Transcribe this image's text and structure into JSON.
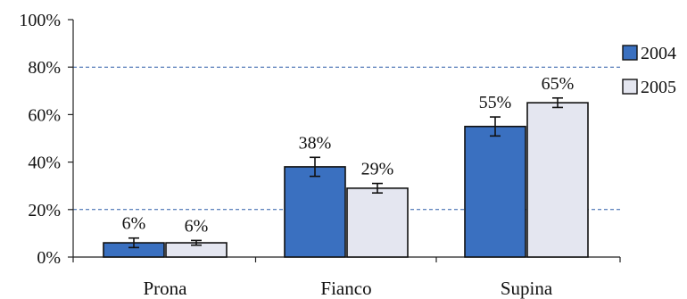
{
  "chart_data": {
    "type": "bar",
    "title": "",
    "xlabel": "",
    "ylabel": "",
    "categories": [
      "Prona",
      "Fianco",
      "Supina"
    ],
    "series": [
      {
        "name": "2004",
        "values": [
          6,
          38,
          55
        ],
        "error": [
          2,
          4,
          4
        ],
        "labels": [
          "6%",
          "38%",
          "55%"
        ],
        "color": "#3a70c0"
      },
      {
        "name": "2005",
        "values": [
          6,
          29,
          65
        ],
        "error": [
          1,
          2,
          2
        ],
        "labels": [
          "6%",
          "29%",
          "65%"
        ],
        "color": "#e4e6f0"
      }
    ],
    "ylim": [
      0,
      100
    ],
    "yticks": [
      0,
      20,
      40,
      60,
      80,
      100
    ],
    "ytick_labels": [
      "0%",
      "20%",
      "40%",
      "60%",
      "80%",
      "100%"
    ],
    "gridlines": [
      20,
      80
    ],
    "grid_style": "dashed",
    "grid_color": "#2f5fa8",
    "legend_position": "right"
  }
}
